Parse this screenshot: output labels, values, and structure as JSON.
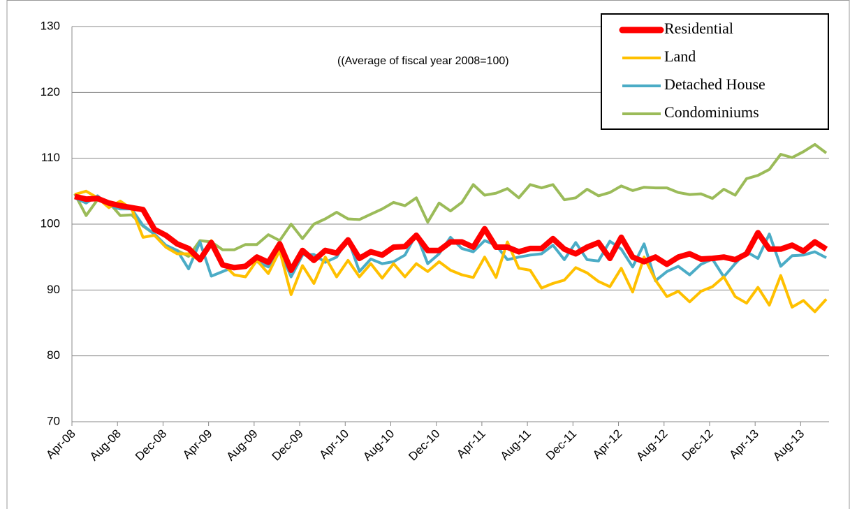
{
  "chart_data": {
    "type": "line",
    "subtitle": "((Average of fiscal year 2008=100)",
    "categories": [
      "Apr-08",
      null,
      null,
      null,
      "Aug-08",
      null,
      null,
      null,
      "Dec-08",
      null,
      null,
      null,
      "Apr-09",
      null,
      null,
      null,
      "Aug-09",
      null,
      null,
      null,
      "Dec-09",
      null,
      null,
      null,
      "Apr-10",
      null,
      null,
      null,
      "Aug-10",
      null,
      null,
      null,
      "Dec-10",
      null,
      null,
      null,
      "Apr-11",
      null,
      null,
      null,
      "Aug-11",
      null,
      null,
      null,
      "Dec-11",
      null,
      null,
      null,
      "Apr-12",
      null,
      null,
      null,
      "Aug-12",
      null,
      null,
      null,
      "Dec-12",
      null,
      null,
      null,
      "Apr-13",
      null,
      null,
      null,
      "Aug-13",
      null,
      null
    ],
    "series": [
      {
        "name": "Residential",
        "color": "#ff0000",
        "values": [
          104.2,
          103.8,
          103.9,
          103.2,
          102.8,
          102.5,
          102.2,
          99.2,
          98.3,
          97,
          96.3,
          94.6,
          97.2,
          93.8,
          93.4,
          93.6,
          95,
          94.2,
          97,
          93,
          96,
          94.5,
          96,
          95.6,
          97.6,
          94.8,
          95.8,
          95.3,
          96.5,
          96.6,
          98.3,
          96,
          96,
          97.3,
          97.3,
          96.5,
          99.3,
          96.5,
          96.5,
          95.8,
          96.3,
          96.3,
          97.8,
          96.2,
          95.5,
          96.5,
          97.2,
          94.8,
          98,
          95,
          94.3,
          95,
          93.9,
          95,
          95.5,
          94.7,
          94.8,
          95,
          94.6,
          95.5,
          98.7,
          96.2,
          96.2,
          96.8,
          95.9,
          97.3,
          96.2
        ]
      },
      {
        "name": "Land",
        "color": "#ffc000",
        "values": [
          104.5,
          105,
          104,
          102.5,
          103.5,
          102.3,
          98,
          98.3,
          96.5,
          95.5,
          95.5,
          94.5,
          97.5,
          94,
          92.3,
          92,
          94.5,
          92.5,
          96,
          89.3,
          93.7,
          91,
          95,
          92,
          94.5,
          92,
          94,
          91.8,
          94,
          92,
          94,
          92.8,
          94.3,
          93,
          92.3,
          91.9,
          95,
          91.9,
          97.3,
          93.3,
          93,
          90.3,
          91,
          91.5,
          93.4,
          92.6,
          91.3,
          90.5,
          93.3,
          89.7,
          95,
          91.5,
          89,
          89.8,
          88.2,
          89.8,
          90.5,
          92,
          89,
          88,
          90.4,
          87.7,
          92.2,
          87.4,
          88.4,
          86.7,
          88.6
        ]
      },
      {
        "name": "Detached House",
        "color": "#4bacc6",
        "values": [
          104,
          103.2,
          104.3,
          102.8,
          102.3,
          102.3,
          99.8,
          98.5,
          96.8,
          96,
          93.2,
          97.3,
          92.1,
          92.8,
          93.5,
          93.8,
          94.3,
          93.5,
          96,
          92,
          95.3,
          95.4,
          94.2,
          95,
          97.8,
          92.8,
          94.7,
          94,
          94.3,
          95.3,
          98.5,
          94,
          95.5,
          98,
          96.3,
          95.8,
          97.5,
          96.8,
          94.6,
          95,
          95.3,
          95.5,
          96.8,
          94.6,
          97.2,
          94.6,
          94.4,
          97.4,
          96.2,
          93.5,
          97,
          91.4,
          92.8,
          93.6,
          92.3,
          93.9,
          94.7,
          92,
          94,
          95.8,
          94.8,
          98.5,
          93.6,
          95.2,
          95.3,
          95.8,
          94.9
        ]
      },
      {
        "name": "Condominiums",
        "color": "#9bbb59",
        "values": [
          104.6,
          101.3,
          103.7,
          103.3,
          101.3,
          101.4,
          99.7,
          98.5,
          96.6,
          96,
          95.1,
          97.5,
          97.3,
          96.1,
          96.1,
          96.9,
          96.9,
          98.4,
          97.5,
          100,
          97.8,
          100,
          100.8,
          101.8,
          100.8,
          100.7,
          101.5,
          102.3,
          103.3,
          102.8,
          104,
          100.3,
          103.2,
          102,
          103.3,
          106,
          104.4,
          104.7,
          105.4,
          104,
          106,
          105.5,
          106,
          103.7,
          104,
          105.3,
          104.3,
          104.8,
          105.8,
          105.1,
          105.6,
          105.5,
          105.5,
          104.8,
          104.5,
          104.6,
          103.9,
          105.3,
          104.4,
          106.9,
          107.4,
          108.3,
          110.6,
          110.1,
          111,
          112.1,
          110.8
        ]
      }
    ],
    "ylim": [
      70,
      130
    ],
    "yticks": [
      70,
      80,
      90,
      100,
      110,
      120,
      130
    ],
    "grid": true,
    "legend": "top-right"
  }
}
